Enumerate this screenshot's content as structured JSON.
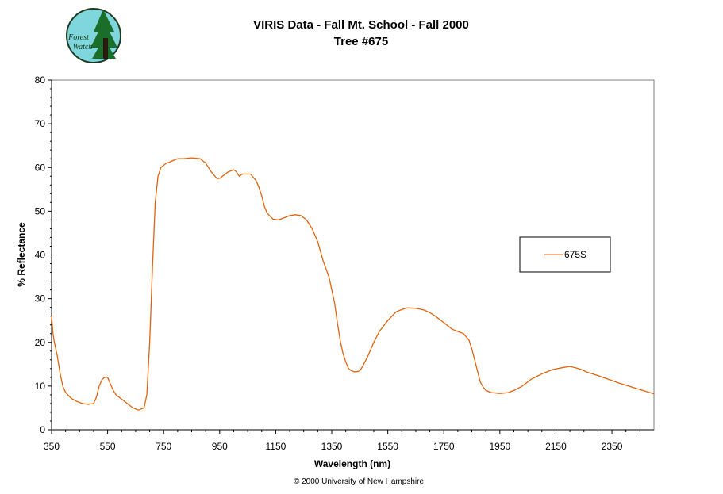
{
  "logo": {
    "text_line1": "Forest",
    "text_line2": "Watch"
  },
  "footer": {
    "copyright": "© 2000 University of New Hampshire"
  },
  "chart_data": {
    "type": "line",
    "title": "VIRIS Data - Fall Mt. School - Fall 2000",
    "subtitle": "Tree #675",
    "xlabel": "Wavelength (nm)",
    "ylabel": "% Reflectance",
    "xlim": [
      350,
      2500
    ],
    "ylim": [
      0,
      80
    ],
    "xticks": [
      350,
      550,
      750,
      950,
      1150,
      1350,
      1550,
      1750,
      1950,
      2150,
      2350
    ],
    "yticks": [
      0,
      10,
      20,
      30,
      40,
      50,
      60,
      70,
      80
    ],
    "grid": false,
    "legend_position": "right",
    "colors": {
      "series": "#E0640C",
      "frame": "#000000"
    },
    "series": [
      {
        "name": "675S",
        "x": [
          350,
          355,
          360,
          370,
          380,
          390,
          400,
          420,
          440,
          460,
          480,
          500,
          510,
          520,
          530,
          540,
          550,
          560,
          570,
          580,
          600,
          620,
          640,
          660,
          680,
          690,
          700,
          710,
          720,
          730,
          740,
          750,
          760,
          770,
          780,
          800,
          820,
          850,
          880,
          900,
          920,
          940,
          950,
          960,
          980,
          1000,
          1010,
          1020,
          1030,
          1040,
          1060,
          1080,
          1090,
          1100,
          1110,
          1120,
          1140,
          1160,
          1180,
          1200,
          1220,
          1240,
          1260,
          1280,
          1300,
          1320,
          1340,
          1360,
          1370,
          1380,
          1390,
          1400,
          1410,
          1420,
          1430,
          1440,
          1450,
          1460,
          1480,
          1500,
          1520,
          1550,
          1580,
          1600,
          1620,
          1650,
          1680,
          1700,
          1720,
          1750,
          1760,
          1780,
          1800,
          1820,
          1840,
          1850,
          1860,
          1870,
          1880,
          1890,
          1900,
          1920,
          1950,
          1980,
          2000,
          2030,
          2060,
          2100,
          2140,
          2180,
          2200,
          2220,
          2240,
          2260,
          2300,
          2340,
          2380,
          2420,
          2460,
          2500
        ],
        "y": [
          26,
          22,
          20,
          17,
          13,
          10,
          8.5,
          7.2,
          6.5,
          6.0,
          5.8,
          6.0,
          7.5,
          10,
          11.5,
          12,
          12,
          10.5,
          9,
          8,
          7,
          6,
          5,
          4.5,
          5,
          8,
          20,
          37,
          52,
          58,
          60,
          60.5,
          61,
          61.2,
          61.5,
          62,
          62,
          62.2,
          62,
          61,
          59,
          57.5,
          57.5,
          58,
          59,
          59.5,
          59,
          58,
          58.5,
          58.5,
          58.5,
          57,
          55.5,
          53.5,
          51,
          49.5,
          48.2,
          48,
          48.5,
          49,
          49.2,
          49,
          48,
          46,
          43,
          38.5,
          35,
          29,
          24.5,
          20.5,
          17.5,
          15.5,
          14,
          13.5,
          13.3,
          13.3,
          13.5,
          14.5,
          17,
          20,
          22.5,
          25,
          27,
          27.5,
          27.9,
          27.8,
          27.4,
          26.8,
          26,
          24.5,
          24,
          23,
          22.5,
          22,
          20.5,
          18.5,
          16,
          13.5,
          11,
          9.8,
          9,
          8.5,
          8.3,
          8.5,
          9,
          10,
          11.5,
          12.8,
          13.8,
          14.3,
          14.5,
          14.2,
          13.8,
          13.2,
          12.4,
          11.5,
          10.6,
          9.8,
          9.0,
          8.2
        ]
      }
    ]
  }
}
